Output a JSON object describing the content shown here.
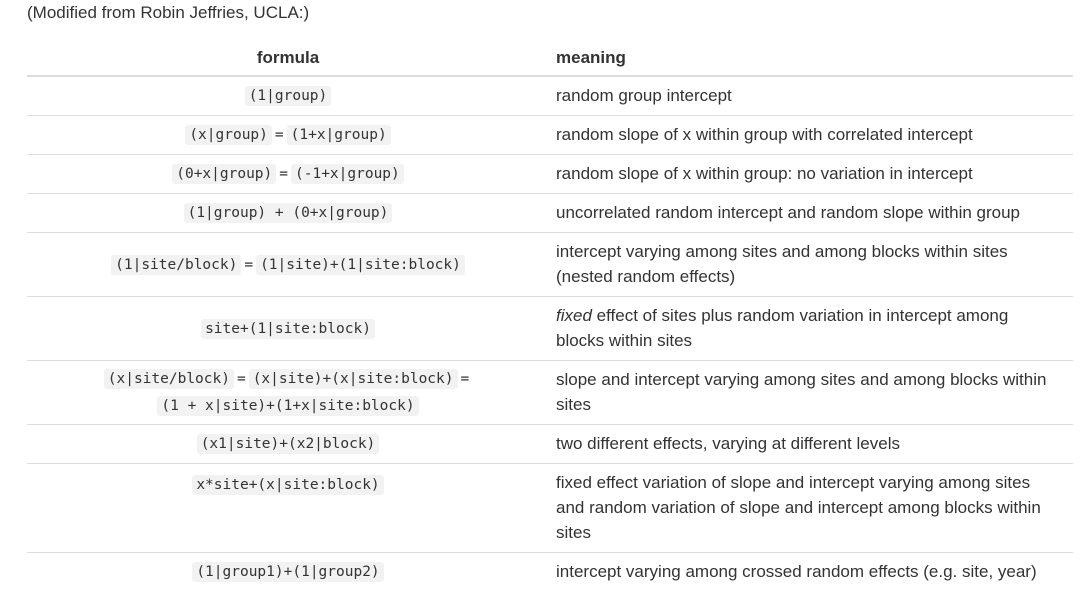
{
  "source_note": "(Modified from Robin Jeffries, UCLA:)",
  "table": {
    "headers": {
      "formula": "formula",
      "meaning": "meaning"
    },
    "rows": [
      {
        "codes": [
          "(1|group)"
        ],
        "meaning": "random group intercept"
      },
      {
        "codes": [
          "(x|group)",
          "(1+x|group)"
        ],
        "separators": [
          "="
        ],
        "meaning": "random slope of x within group with correlated intercept"
      },
      {
        "codes": [
          "(0+x|group)",
          "(-1+x|group)"
        ],
        "separators": [
          "="
        ],
        "meaning": "random slope of x within group: no variation in intercept"
      },
      {
        "codes": [
          "(1|group) + (0+x|group)"
        ],
        "meaning": "uncorrelated random intercept and random slope within group"
      },
      {
        "codes": [
          "(1|site/block)",
          "(1|site)+(1|site:block)"
        ],
        "separators": [
          "="
        ],
        "meaning_line1": "intercept varying among sites and among blocks within sites",
        "meaning_line2": "(nested random effects)"
      },
      {
        "codes": [
          "site+(1|site:block)"
        ],
        "meaning_emphasis": "fixed",
        "meaning_line1_rest": " effect of sites plus random variation in intercept among",
        "meaning_line2": "blocks within sites"
      },
      {
        "codes": [
          "(x|site/block)",
          "(x|site)+(x|site:block)",
          "(1 + x|site)+(1+x|site:block)"
        ],
        "separators": [
          "=",
          "="
        ],
        "meaning_line1": "slope and intercept varying among sites and among blocks within",
        "meaning_line2": "sites"
      },
      {
        "codes": [
          "(x1|site)+(x2|block)"
        ],
        "meaning": "two different effects, varying at different levels"
      },
      {
        "codes": [
          "x*site+(x|site:block)"
        ],
        "meaning_line1": "fixed effect variation of slope and intercept varying among sites",
        "meaning_line2": "and random variation of slope and intercept among blocks within",
        "meaning_line3": "sites"
      },
      {
        "codes": [
          "(1|group1)+(1|group2)"
        ],
        "meaning": "intercept varying among crossed random effects (e.g. site, year)"
      }
    ]
  }
}
